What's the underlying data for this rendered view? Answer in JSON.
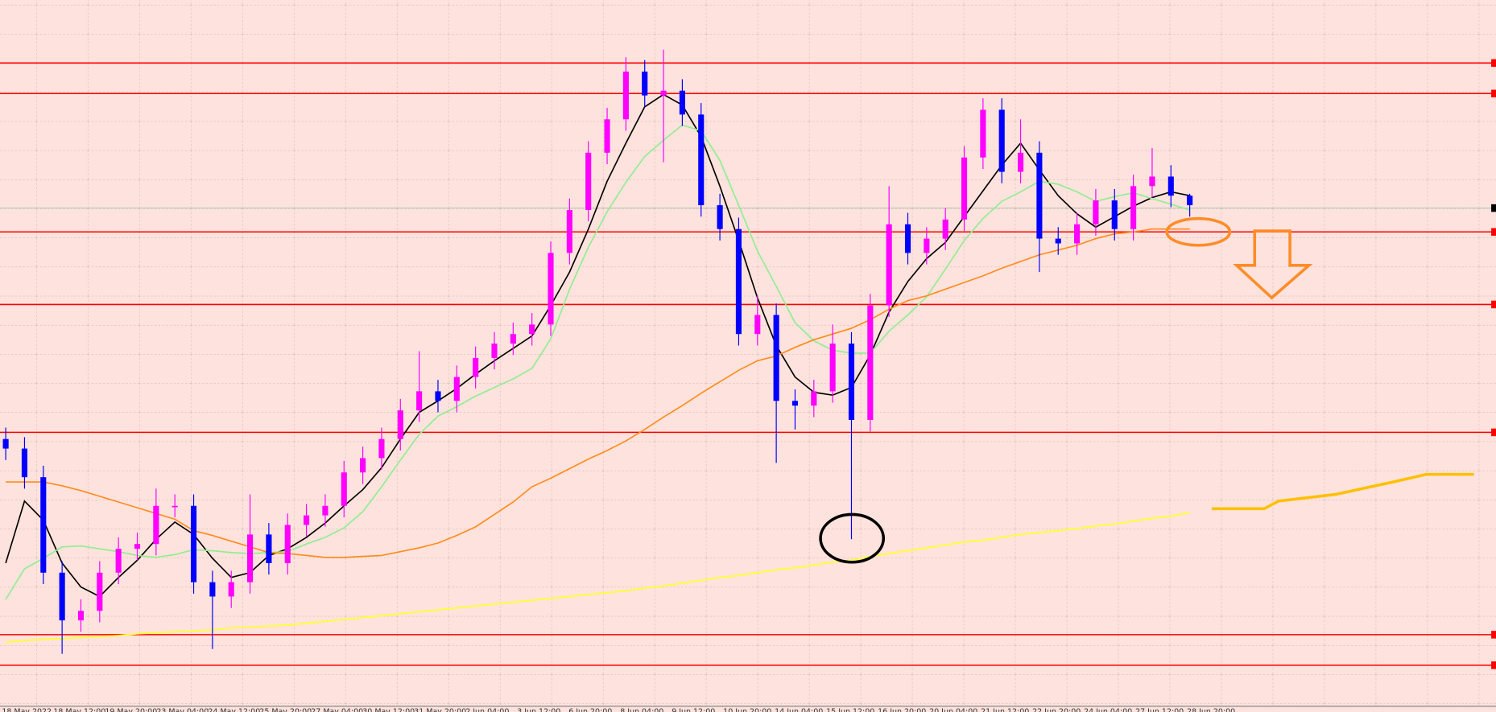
{
  "chart_data": {
    "type": "candlestick",
    "ylim": [
      0,
      740
    ],
    "up_color": "#ff00ff",
    "down_color": "#0000ff",
    "open": [
      280,
      270,
      240,
      140,
      90,
      100,
      140,
      165,
      170,
      210,
      210,
      130,
      115,
      130,
      180,
      150,
      190,
      200,
      210,
      245,
      260,
      280,
      310,
      330,
      320,
      345,
      365,
      380,
      390,
      400,
      475,
      520,
      580,
      615,
      665,
      640,
      645,
      620,
      525,
      500,
      390,
      410,
      320,
      315,
      330,
      380,
      300,
      420,
      505,
      475,
      490,
      510,
      575,
      625,
      560,
      580,
      490,
      485,
      505,
      530,
      500,
      545,
      555,
      535
    ],
    "high": [
      292,
      282,
      252,
      152,
      112,
      152,
      177,
      182,
      228,
      222,
      222,
      142,
      142,
      222,
      192,
      202,
      212,
      222,
      257,
      272,
      292,
      322,
      372,
      342,
      357,
      377,
      392,
      402,
      412,
      487,
      532,
      592,
      627,
      680,
      677,
      688,
      657,
      632,
      537,
      512,
      430,
      422,
      332,
      342,
      400,
      392,
      432,
      545,
      517,
      502,
      522,
      587,
      637,
      637,
      615,
      592,
      502,
      517,
      542,
      542,
      557,
      585,
      567,
      537
    ],
    "low": [
      258,
      228,
      128,
      55,
      78,
      88,
      128,
      153,
      158,
      198,
      118,
      60,
      103,
      118,
      138,
      138,
      178,
      188,
      198,
      233,
      248,
      268,
      298,
      308,
      308,
      333,
      353,
      368,
      378,
      388,
      463,
      508,
      568,
      603,
      628,
      570,
      608,
      513,
      488,
      378,
      378,
      255,
      290,
      303,
      318,
      175,
      288,
      408,
      463,
      463,
      478,
      498,
      563,
      548,
      548,
      455,
      473,
      473,
      493,
      488,
      488,
      533,
      523,
      513
    ],
    "close": [
      270,
      240,
      140,
      90,
      100,
      140,
      165,
      170,
      210,
      210,
      130,
      115,
      130,
      180,
      150,
      190,
      200,
      210,
      245,
      260,
      280,
      310,
      330,
      320,
      345,
      365,
      380,
      390,
      400,
      475,
      520,
      580,
      615,
      665,
      640,
      645,
      620,
      525,
      500,
      390,
      410,
      320,
      315,
      330,
      380,
      300,
      420,
      505,
      475,
      490,
      510,
      575,
      625,
      560,
      580,
      490,
      485,
      505,
      530,
      500,
      545,
      555,
      535,
      525
    ],
    "series": [
      {
        "color": "#000000",
        "values": [
          150,
          215,
          195,
          150,
          125,
          115,
          135,
          153,
          175,
          193,
          180,
          155,
          135,
          140,
          158,
          165,
          177,
          192,
          210,
          227,
          250,
          280,
          308,
          320,
          333,
          348,
          362,
          375,
          388,
          420,
          455,
          500,
          550,
          590,
          628,
          641,
          630,
          597,
          545,
          488,
          428,
          378,
          345,
          329,
          326,
          334,
          368,
          413,
          445,
          469,
          486,
          513,
          540,
          567,
          590,
          562,
          535,
          516,
          502,
          513,
          524,
          533,
          539,
          535
        ]
      },
      {
        "color": "#90ee90",
        "values": [
          112,
          144,
          155,
          167,
          168,
          165,
          162,
          158,
          156,
          159,
          164,
          163,
          161,
          160,
          161,
          162,
          170,
          177,
          187,
          204,
          230,
          258,
          285,
          304,
          314,
          325,
          334,
          343,
          354,
          385,
          437,
          481,
          518,
          549,
          576,
          593,
          609,
          603,
          572,
          525,
          477,
          440,
          402,
          383,
          373,
          370,
          370,
          393,
          410,
          429,
          458,
          488,
          511,
          529,
          539,
          550,
          547,
          539,
          529,
          534,
          538,
          532,
          526,
          520
        ]
      },
      {
        "color": "#ff8c1a",
        "values": [
          235,
          235,
          235,
          231,
          226,
          220,
          214,
          208,
          202,
          196,
          184,
          179,
          173,
          167,
          161,
          160,
          158,
          156,
          156,
          157,
          158,
          162,
          166,
          171,
          179,
          188,
          201,
          214,
          230,
          239,
          249,
          259,
          268,
          278,
          290,
          303,
          315,
          328,
          340,
          352,
          362,
          367,
          376,
          384,
          390,
          396,
          405,
          416,
          425,
          430,
          437,
          444,
          451,
          459,
          466,
          473,
          478,
          483,
          490,
          495,
          497,
          500,
          500,
          500
        ]
      },
      {
        "color": "#ffff33",
        "values": [
          67,
          69,
          70,
          71,
          72,
          73,
          74,
          76,
          77,
          78,
          79,
          80,
          82,
          83,
          84,
          85,
          87,
          89,
          91,
          93,
          95,
          97,
          99,
          101,
          103,
          105,
          107,
          109,
          111,
          113,
          115,
          117,
          119,
          121,
          124,
          126,
          129,
          132,
          135,
          137,
          140,
          143,
          145,
          148,
          151,
          153,
          157,
          160,
          163,
          166,
          169,
          172,
          174,
          177,
          180,
          182,
          184,
          186,
          189,
          191,
          194,
          197,
          199,
          203
        ]
      }
    ],
    "levels": [
      674,
      642,
      497,
      421,
      287,
      75,
      43
    ],
    "level_color": "#ff0000",
    "bid": 522,
    "time_labels": [
      "18 May 2022",
      "18 May 12:00",
      "19 May 20:00",
      "23 May 04:00",
      "24 May 12:00",
      "25 May 20:00",
      "27 May 04:00",
      "30 May 12:00",
      "31 May 20:00",
      "2 Jun 04:00",
      "3 Jun 12:00",
      "6 Jun 20:00",
      "8 Jun 04:00",
      "9 Jun 12:00",
      "10 Jun 20:00",
      "14 Jun 04:00",
      "15 Jun 12:00",
      "16 Jun 20:00",
      "20 Jun 04:00",
      "21 Jun 12:00",
      "22 Jun 20:00",
      "24 Jun 04:00",
      "27 Jun 12:00",
      "28 Jun 20:00"
    ]
  }
}
